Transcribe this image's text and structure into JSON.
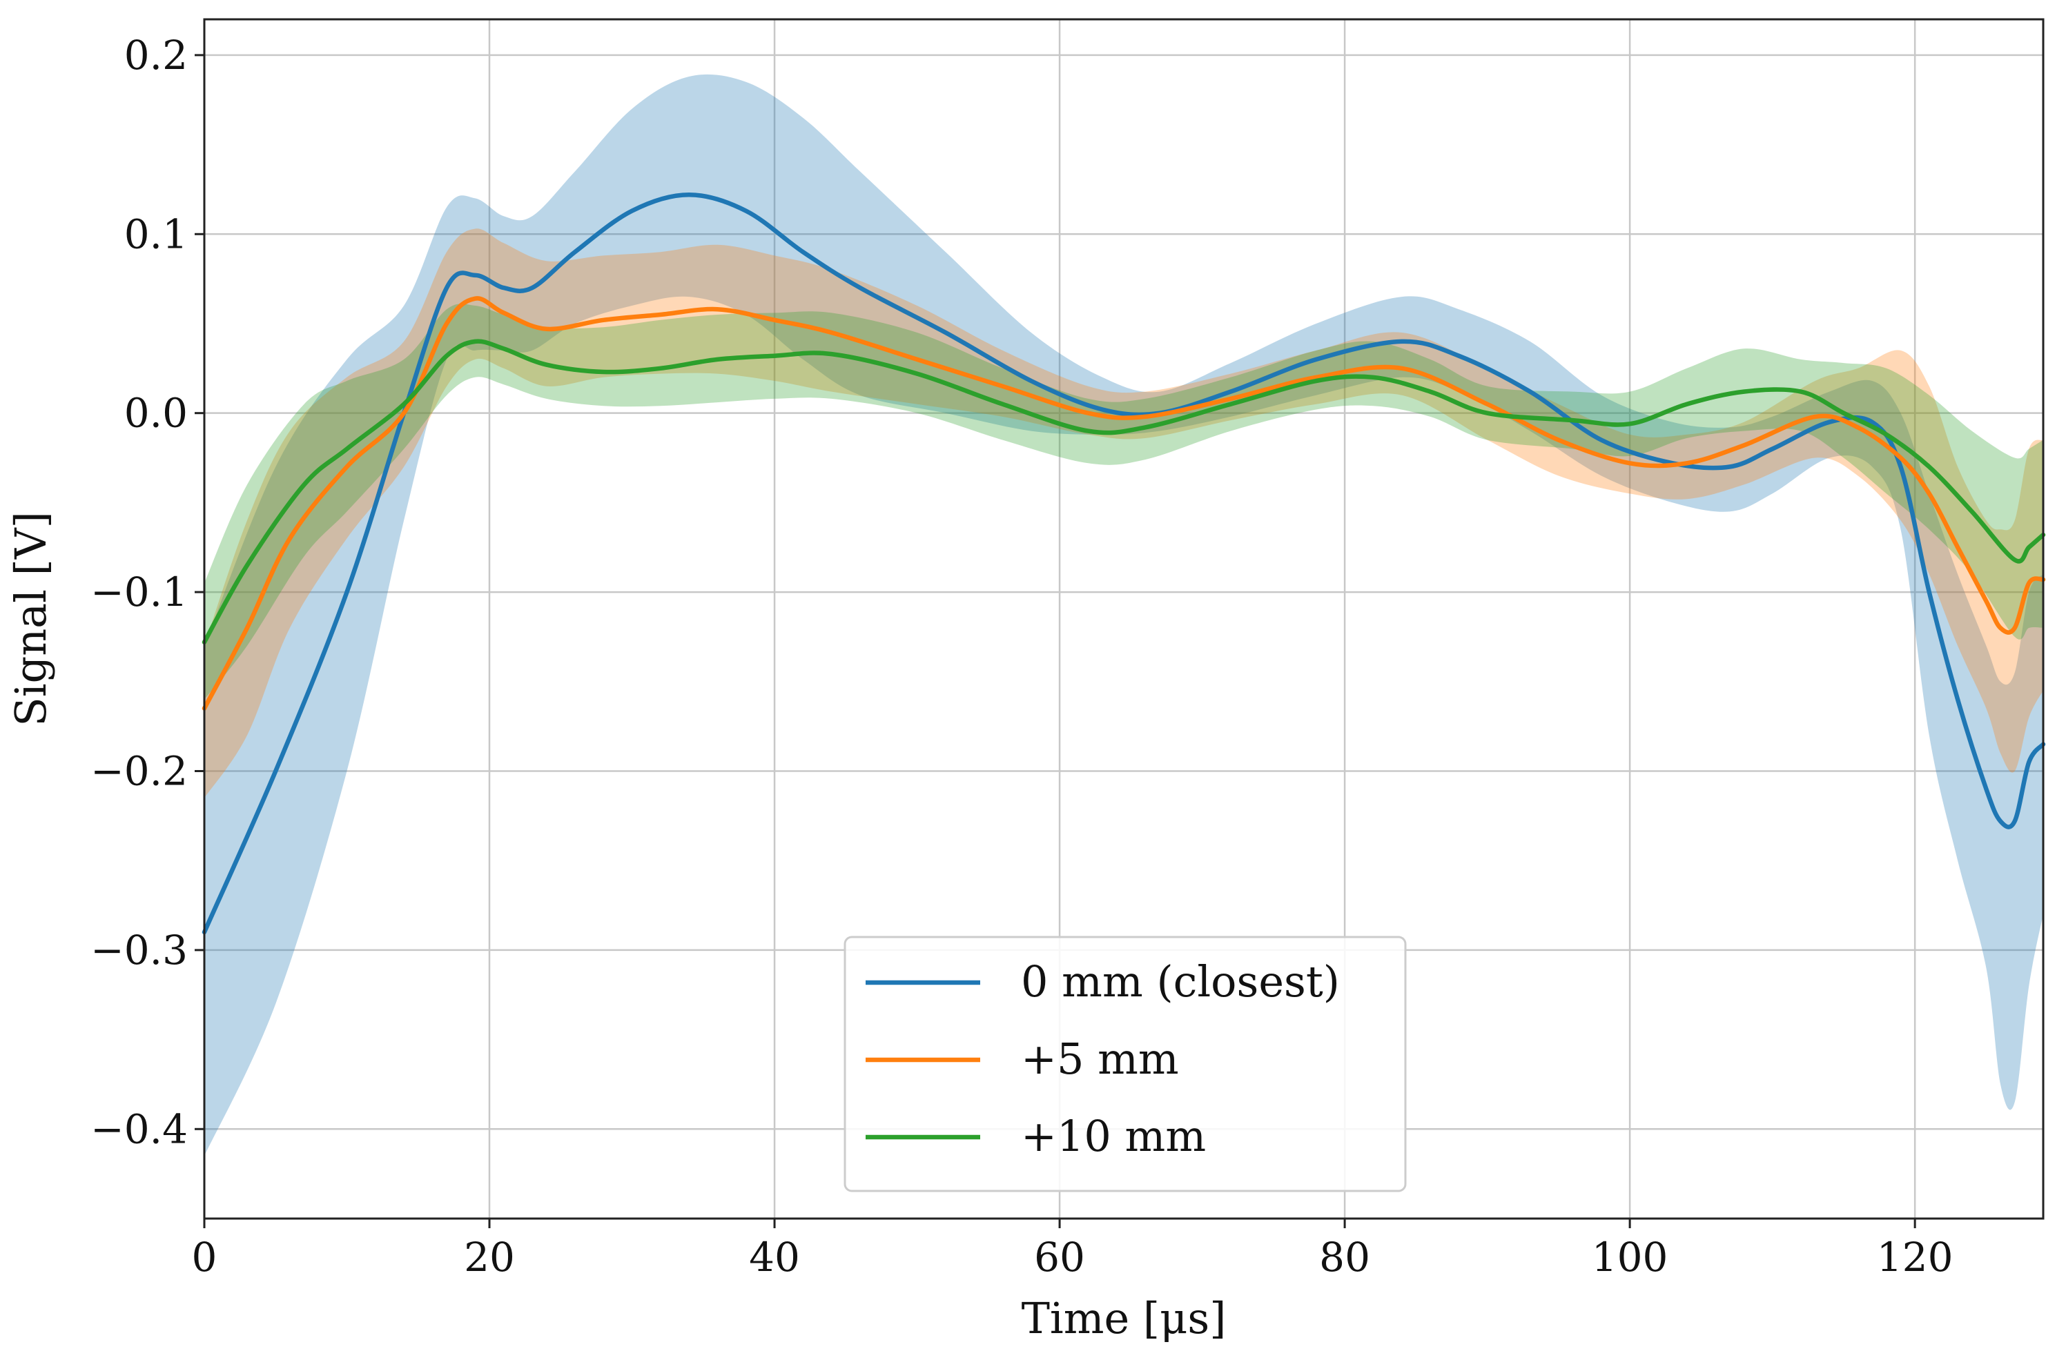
{
  "chart_data": {
    "type": "line",
    "title": "",
    "xlabel": "Time [μs]",
    "ylabel": "Signal [V]",
    "xlim": [
      0,
      129
    ],
    "ylim": [
      -0.45,
      0.22
    ],
    "xticks": [
      0,
      20,
      40,
      60,
      80,
      100,
      120
    ],
    "xtick_labels": [
      "0",
      "20",
      "40",
      "60",
      "80",
      "100",
      "120"
    ],
    "yticks": [
      0.2,
      0.1,
      0.0,
      -0.1,
      -0.2,
      -0.3,
      -0.4
    ],
    "ytick_labels": [
      "0.2",
      "0.1",
      "0.0",
      "−0.1",
      "−0.2",
      "−0.3",
      "−0.4"
    ],
    "grid": true,
    "legend_position": "bottom-center",
    "series": [
      {
        "name": "0 mm (closest)",
        "color": "#1f77b4",
        "x": [
          0,
          5,
          10,
          14,
          17,
          19,
          21,
          23,
          26,
          30,
          34,
          38,
          42,
          46,
          52,
          58,
          63,
          67,
          72,
          78,
          84,
          88,
          93,
          98,
          103,
          107,
          110,
          114,
          117,
          119,
          121,
          123,
          125,
          126,
          127,
          128,
          129
        ],
        "y": [
          -0.29,
          -0.2,
          -0.1,
          0.0,
          0.07,
          0.077,
          0.07,
          0.07,
          0.09,
          0.113,
          0.122,
          0.113,
          0.09,
          0.07,
          0.045,
          0.018,
          0.002,
          0.0,
          0.012,
          0.03,
          0.04,
          0.032,
          0.012,
          -0.015,
          -0.028,
          -0.03,
          -0.02,
          -0.005,
          -0.005,
          -0.03,
          -0.1,
          -0.16,
          -0.21,
          -0.228,
          -0.228,
          -0.195,
          -0.185
        ],
        "upper": [
          -0.13,
          -0.03,
          0.03,
          0.06,
          0.115,
          0.12,
          0.11,
          0.11,
          0.135,
          0.17,
          0.188,
          0.185,
          0.165,
          0.135,
          0.09,
          0.045,
          0.02,
          0.012,
          0.028,
          0.05,
          0.065,
          0.058,
          0.04,
          0.01,
          -0.005,
          -0.008,
          -0.002,
          0.012,
          0.018,
          0.0,
          -0.045,
          -0.09,
          -0.13,
          -0.15,
          -0.145,
          -0.1,
          -0.09
        ],
        "lower": [
          -0.415,
          -0.33,
          -0.2,
          -0.06,
          0.03,
          0.035,
          0.035,
          0.035,
          0.05,
          0.06,
          0.065,
          0.055,
          0.03,
          0.01,
          0.0,
          -0.01,
          -0.012,
          -0.01,
          -0.002,
          0.01,
          0.02,
          0.012,
          -0.01,
          -0.035,
          -0.05,
          -0.055,
          -0.045,
          -0.025,
          -0.03,
          -0.065,
          -0.18,
          -0.25,
          -0.31,
          -0.375,
          -0.385,
          -0.32,
          -0.28
        ]
      },
      {
        "name": "+5 mm",
        "color": "#ff7f0e",
        "x": [
          0,
          3,
          6,
          10,
          14,
          17,
          19,
          21,
          24,
          28,
          32,
          36,
          40,
          44,
          50,
          56,
          62,
          66,
          72,
          78,
          84,
          90,
          95,
          100,
          104,
          108,
          113,
          116,
          119,
          121,
          123,
          125,
          126,
          127,
          128,
          129
        ],
        "y": [
          -0.165,
          -0.12,
          -0.07,
          -0.03,
          0.0,
          0.05,
          0.064,
          0.056,
          0.047,
          0.052,
          0.055,
          0.058,
          0.052,
          0.045,
          0.03,
          0.015,
          0.0,
          -0.002,
          0.008,
          0.02,
          0.025,
          0.005,
          -0.015,
          -0.028,
          -0.028,
          -0.018,
          -0.002,
          -0.008,
          -0.025,
          -0.045,
          -0.075,
          -0.105,
          -0.12,
          -0.12,
          -0.095,
          -0.093
        ],
        "upper": [
          -0.13,
          -0.06,
          -0.01,
          0.02,
          0.04,
          0.09,
          0.103,
          0.095,
          0.085,
          0.088,
          0.09,
          0.094,
          0.088,
          0.08,
          0.06,
          0.035,
          0.015,
          0.012,
          0.022,
          0.035,
          0.045,
          0.025,
          0.005,
          -0.012,
          -0.012,
          -0.005,
          0.018,
          0.025,
          0.035,
          0.015,
          -0.03,
          -0.06,
          -0.065,
          -0.06,
          -0.02,
          -0.015
        ],
        "lower": [
          -0.215,
          -0.18,
          -0.12,
          -0.07,
          -0.03,
          0.015,
          0.03,
          0.025,
          0.015,
          0.02,
          0.022,
          0.022,
          0.018,
          0.012,
          0.005,
          -0.002,
          -0.012,
          -0.014,
          -0.004,
          0.005,
          0.01,
          -0.015,
          -0.035,
          -0.045,
          -0.048,
          -0.04,
          -0.025,
          -0.035,
          -0.06,
          -0.09,
          -0.13,
          -0.165,
          -0.19,
          -0.2,
          -0.17,
          -0.155
        ]
      },
      {
        "name": "+10 mm",
        "color": "#2ca02c",
        "x": [
          0,
          3,
          7,
          10,
          14,
          17,
          19,
          21,
          24,
          28,
          32,
          36,
          40,
          44,
          50,
          56,
          62,
          66,
          72,
          78,
          82,
          86,
          90,
          96,
          100,
          104,
          108,
          112,
          115,
          118,
          121,
          124,
          127,
          128,
          129
        ],
        "y": [
          -0.128,
          -0.085,
          -0.04,
          -0.02,
          0.005,
          0.032,
          0.04,
          0.036,
          0.027,
          0.023,
          0.025,
          0.03,
          0.032,
          0.033,
          0.022,
          0.005,
          -0.01,
          -0.008,
          0.005,
          0.018,
          0.02,
          0.012,
          0.0,
          -0.004,
          -0.006,
          0.005,
          0.012,
          0.012,
          0.0,
          -0.012,
          -0.03,
          -0.055,
          -0.082,
          -0.075,
          -0.068
        ],
        "upper": [
          -0.095,
          -0.04,
          0.005,
          0.018,
          0.03,
          0.058,
          0.06,
          0.055,
          0.048,
          0.048,
          0.052,
          0.055,
          0.056,
          0.056,
          0.045,
          0.025,
          0.008,
          0.008,
          0.02,
          0.035,
          0.04,
          0.03,
          0.015,
          0.012,
          0.012,
          0.025,
          0.036,
          0.03,
          0.028,
          0.025,
          0.01,
          -0.01,
          -0.025,
          -0.02,
          -0.015
        ],
        "lower": [
          -0.16,
          -0.13,
          -0.08,
          -0.055,
          -0.02,
          0.01,
          0.02,
          0.016,
          0.008,
          0.004,
          0.004,
          0.006,
          0.008,
          0.008,
          0.0,
          -0.015,
          -0.028,
          -0.026,
          -0.01,
          0.002,
          0.004,
          -0.002,
          -0.015,
          -0.02,
          -0.024,
          -0.014,
          -0.01,
          -0.01,
          -0.025,
          -0.045,
          -0.065,
          -0.09,
          -0.125,
          -0.12,
          -0.12
        ]
      }
    ]
  }
}
